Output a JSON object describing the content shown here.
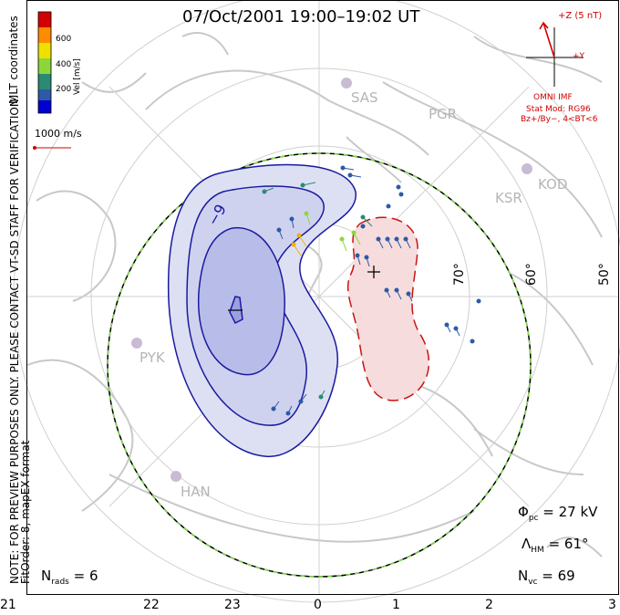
{
  "header": {
    "title": "07/Oct/2001 19:00–19:02 UT"
  },
  "side_notes": {
    "note_line1": "NOTE: FOR PREVIEW PURPOSES ONLY. PLEASE CONTACT VT-SD STAFF FOR VERIFICATION.",
    "note_line2": "FitOrder: 8, mapEX format",
    "coordinates": "MLT coordinates"
  },
  "colorbar": {
    "label": "Vel [m/s]",
    "ticks": [
      "600",
      "400",
      "200"
    ],
    "colors": [
      "#d40000",
      "#ff8c00",
      "#f0e000",
      "#8dd63a",
      "#2a8a74",
      "#2c5aa6",
      "#0000d0"
    ]
  },
  "vector_scale": {
    "label": "1000 m/s"
  },
  "imf": {
    "z_label": "+Z (5 nT)",
    "y_label": "+Y",
    "source": "OMNI IMF",
    "model": "Stat Mod: RG96",
    "condition": "Bz+/By−, 4<BT<6"
  },
  "stats": {
    "phi_symbol": "Φ",
    "phi_sub": "pc",
    "phi_value": "= 27 kV",
    "lambda_symbol": "Λ",
    "lambda_sub": "HM",
    "lambda_value": "= 61°",
    "nvc_symbol": "N",
    "nvc_sub": "vc",
    "nvc_value": "= 69",
    "nrads_symbol": "N",
    "nrads_sub": "rads",
    "nrads_value": "= 6"
  },
  "mlt_ticks": [
    "21",
    "22",
    "23",
    "0",
    "1",
    "2",
    "3"
  ],
  "lat_labels": [
    "70°",
    "60°",
    "50°"
  ],
  "contour_label": "−9",
  "max_marker": "+",
  "stations": [
    "SAS",
    "PGR",
    "KSR",
    "KOD",
    "PYK",
    "HAN"
  ],
  "colors": {
    "negative_cell": "#1a1aa0",
    "positive_cell": "#c81414",
    "boundary_green": "#7fdc4a"
  }
}
